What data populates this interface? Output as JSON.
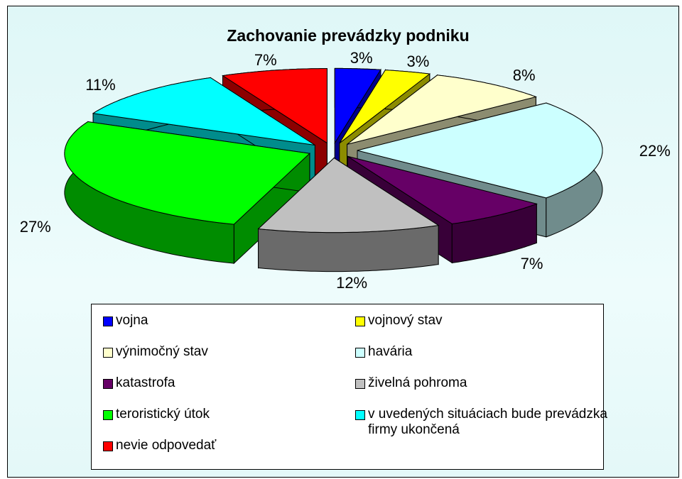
{
  "chart_data": {
    "type": "pie3d",
    "title": "Zachovanie prevádzky podniku",
    "categories": [
      "vojna",
      "vojnový stav",
      "výnimočný stav",
      "havária",
      "katastrofa",
      "živelná pohroma",
      "teroristický útok",
      "v uvedených situáciach bude prevádzka firmy ukončená",
      "nevie odpovedať"
    ],
    "values": [
      3,
      3,
      8,
      22,
      7,
      12,
      27,
      11,
      7
    ],
    "value_labels": [
      "3%",
      "3%",
      "8%",
      "22%",
      "7%",
      "12%",
      "27%",
      "11%",
      "7%"
    ],
    "colors": [
      "#0000ff",
      "#ffff00",
      "#ffffcc",
      "#ccffff",
      "#660066",
      "#c0c0c0",
      "#00ff00",
      "#00ffff",
      "#ff0000"
    ],
    "legend": "bottom"
  }
}
